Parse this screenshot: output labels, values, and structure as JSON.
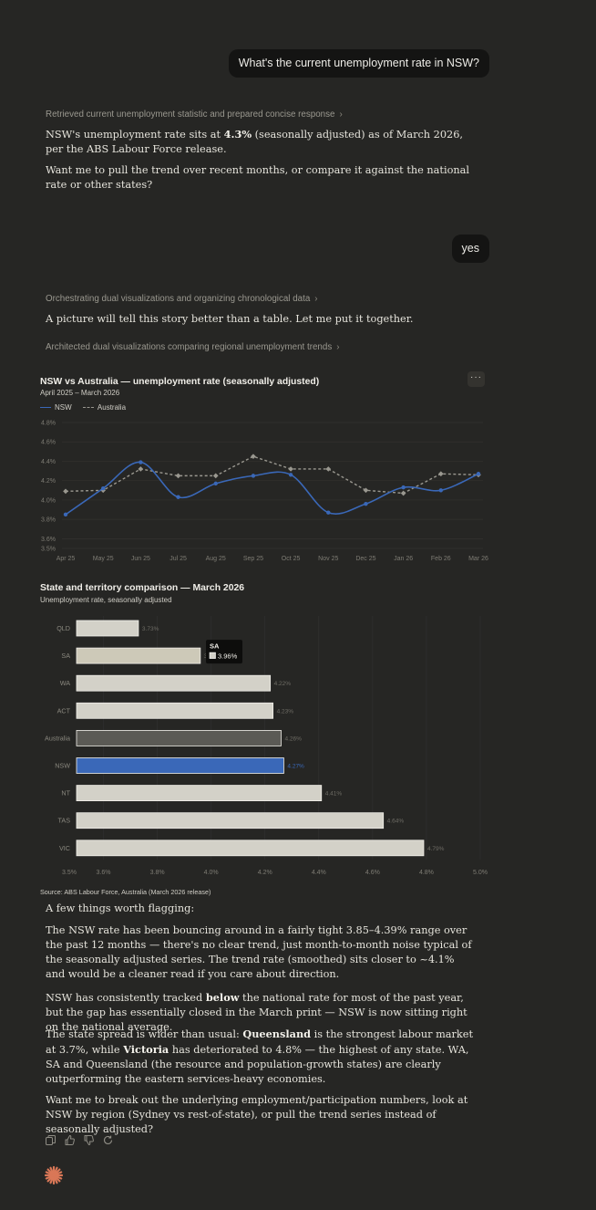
{
  "conversation": {
    "user_message_1": "What's the current unemployment rate in NSW?",
    "thought_1": "Retrieved current unemployment statistic and prepared concise response",
    "reply_1_pre": "NSW's unemployment rate sits at ",
    "reply_1_bold": "4.3%",
    "reply_1_post": " (seasonally adjusted) as of March 2026, per the ABS Labour Force release.",
    "reply_1_followup": "Want me to pull the trend over recent months, or compare it against the national rate or other states?",
    "user_message_2": "yes",
    "thought_2": "Orchestrating dual visualizations and organizing chronological data",
    "reply_2": "A picture will tell this story better than a table. Let me put it together.",
    "thought_3": "Architected dual visualizations comparing regional unemployment trends",
    "more_label": "···",
    "summary_intro": "A few things worth flagging:",
    "summary_p1": "The NSW rate has been bouncing around in a fairly tight 3.85–4.39% range over the past 12 months — there's no clear trend, just month-to-month noise typical of the seasonally adjusted series. The trend rate (smoothed) sits closer to ~4.1% and would be a cleaner read if you care about direction.",
    "summary_p2_pre": "NSW has consistently tracked ",
    "summary_p2_bold": "below",
    "summary_p2_post": " the national rate for most of the past year, but the gap has essentially closed in the March print — NSW is now sitting right on the national average.",
    "summary_p3_a": "The state spread is wider than usual: ",
    "summary_p3_b": "Queensland",
    "summary_p3_c": " is the strongest labour market at 3.7%, while ",
    "summary_p3_d": "Victoria",
    "summary_p3_e": " has deteriorated to 4.8% — the highest of any state. WA, SA and Queensland (the resource and population-growth states) are clearly outperforming the eastern services-heavy economies.",
    "summary_p4": "Want me to break out the underlying employment/participation numbers, look at NSW by region (Sydney vs rest-of-state), or pull the trend series instead of seasonally adjusted?",
    "action_icons": [
      "copy-icon",
      "thumbs-up-icon",
      "thumbs-down-icon",
      "retry-icon"
    ],
    "logo_icon": "claude-sparkle-icon"
  },
  "chart_data": [
    {
      "type": "line",
      "title": "NSW vs Australia — unemployment rate (seasonally adjusted)",
      "subtitle": "April 2025 – March 2026",
      "categories": [
        "Apr 25",
        "May 25",
        "Jun 25",
        "Jul 25",
        "Aug 25",
        "Sep 25",
        "Oct 25",
        "Nov 25",
        "Dec 25",
        "Jan 26",
        "Feb 26",
        "Mar 26"
      ],
      "series": [
        {
          "name": "NSW",
          "values": [
            3.85,
            4.12,
            4.39,
            4.03,
            4.17,
            4.25,
            4.26,
            3.87,
            3.96,
            4.13,
            4.1,
            4.27
          ],
          "color": "#3a68b8"
        },
        {
          "name": "Australia",
          "values": [
            4.09,
            4.1,
            4.32,
            4.25,
            4.25,
            4.45,
            4.32,
            4.32,
            4.1,
            4.07,
            4.27,
            4.26
          ],
          "color": "#9a9890"
        }
      ],
      "y_ticks": [
        "4.8%",
        "4.6%",
        "4.4%",
        "4.2%",
        "4.0%",
        "3.8%",
        "3.6%",
        "3.5%"
      ],
      "ylim": [
        3.5,
        4.8
      ],
      "grid": true,
      "legend": "top-left"
    },
    {
      "type": "bar",
      "title": "State and territory comparison — March 2026",
      "subtitle": "Unemployment rate, seasonally adjusted",
      "categories": [
        "QLD",
        "SA",
        "WA",
        "ACT",
        "Australia",
        "NSW",
        "NT",
        "TAS",
        "VIC"
      ],
      "values": [
        3.73,
        3.96,
        4.22,
        4.23,
        4.26,
        4.27,
        4.41,
        4.64,
        4.79
      ],
      "value_labels": [
        "3.73%",
        "3.96%",
        "4.22%",
        "4.23%",
        "4.26%",
        "4.27%",
        "4.41%",
        "4.64%",
        "4.79%"
      ],
      "x_ticks": [
        "3.5%",
        "3.6%",
        "3.8%",
        "4.0%",
        "4.2%",
        "4.4%",
        "4.6%",
        "4.8%",
        "5.0%"
      ],
      "xlim": [
        3.5,
        5.0
      ],
      "orientation": "horizontal",
      "colors": {
        "default": "#d3d1c8",
        "highlight_sa": "#cdc9b8",
        "australia": "#5b5a55",
        "nsw": "#3a68b8"
      },
      "tooltip": {
        "label": "SA",
        "value": "3.96%"
      },
      "source": "Source: ABS Labour Force, Australia (March 2026 release)"
    }
  ]
}
